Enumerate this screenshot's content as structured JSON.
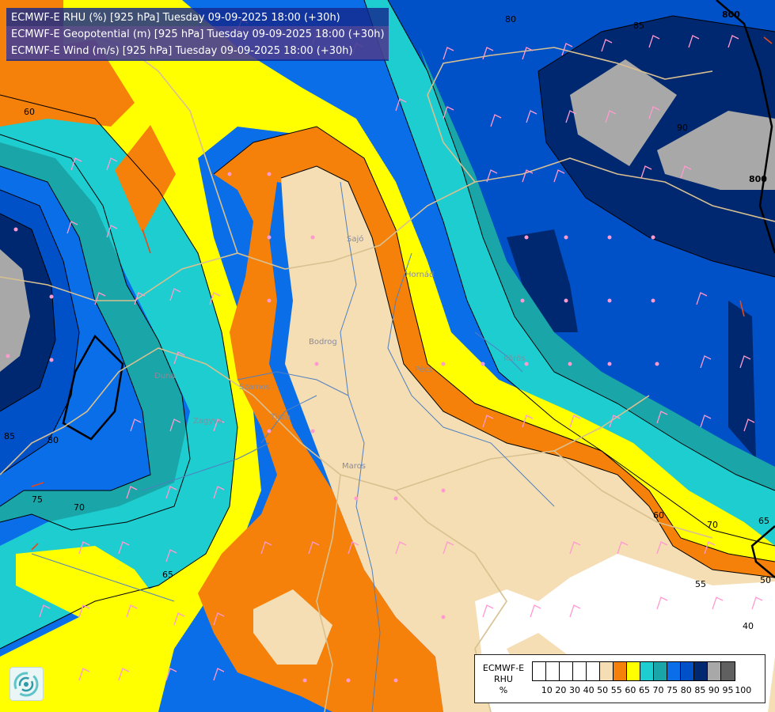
{
  "header": {
    "line1": "ECMWF-E RHU (%) [925 hPa] Tuesday 09-09-2025 18:00 (+30h)",
    "line2": "ECMWF-E Geopotential (m) [925 hPa] Tuesday 09-09-2025 18:00 (+30h)",
    "line3": "ECMWF-E Wind (m/s) [925 hPa] Tuesday 09-09-2025 18:00 (+30h)"
  },
  "legend": {
    "title_line1": "ECMWF-E",
    "title_line2": "RHU",
    "unit": "%",
    "ticks": [
      "10",
      "20",
      "30",
      "40",
      "50",
      "55",
      "60",
      "65",
      "70",
      "75",
      "80",
      "85",
      "90",
      "95",
      "100"
    ],
    "colors": [
      "#ffffff",
      "#ffffff",
      "#ffffff",
      "#ffffff",
      "#ffffff",
      "#f5deb3",
      "#f5800a",
      "#ffff00",
      "#1ecdd0",
      "#1aa5a8",
      "#0a6ee8",
      "#0050c8",
      "#002870",
      "#a8a8a8",
      "#606060"
    ]
  },
  "contour_labels": {
    "rhu": [
      "80",
      "85",
      "90",
      "85",
      "80",
      "75",
      "70",
      "65",
      "60",
      "70",
      "65",
      "55",
      "50",
      "40",
      "60"
    ],
    "geopotential": [
      "800",
      "800"
    ]
  },
  "place_labels": [
    "Hornád",
    "Tisza",
    "Szamos",
    "Körös",
    "Maros",
    "Duna",
    "Pécs",
    "Sajó",
    "Bodrog",
    "Zagyva"
  ],
  "colors": {
    "orange": "#f5800a",
    "wheat": "#f5deb3",
    "yellow": "#ffff00",
    "cyan": "#1ecdd0",
    "teal": "#1aa5a8",
    "blue": "#0a6ee8",
    "medium_blue": "#0050c8",
    "navy": "#002870",
    "gray": "#a8a8a8",
    "white": "#ffffff",
    "wind_barb": "#ff9ad0",
    "border_line": "#d8c090",
    "river": "#5080c0"
  },
  "logo_icon": "ecmwf-swirl-logo-icon"
}
